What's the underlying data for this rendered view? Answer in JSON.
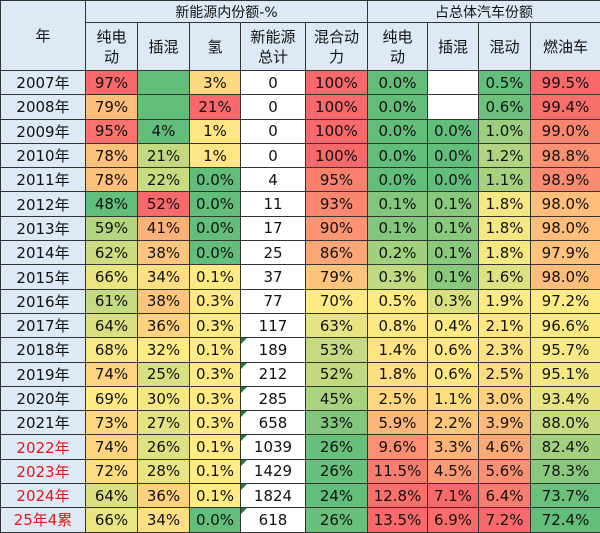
{
  "header": {
    "year": "年",
    "group_nev": "新能源内份额-%",
    "group_total": "占总体汽车份额",
    "cols": [
      "纯电\n动",
      "插混",
      "氢",
      "新能源\n总计",
      "混合动\n力",
      "纯电\n动",
      "插混",
      "混动",
      "燃油车"
    ]
  },
  "color_scale": {
    "low": "#63be7b",
    "mid": "#ffeb84",
    "high": "#f8696b",
    "header_bg": "#ddeaf6",
    "highlight_year_text": "#e8141b"
  },
  "empty_cell_fills": {
    "nev_phev": "#63be7b",
    "total_phev": "#ffffff"
  },
  "rows": [
    {
      "year": "2007年",
      "hl": false,
      "v": [
        "97%",
        "",
        "3%",
        "0",
        "100%",
        "0.0%",
        "",
        "0.5%",
        "99.5%"
      ]
    },
    {
      "year": "2008年",
      "hl": false,
      "v": [
        "79%",
        "",
        "21%",
        "0",
        "100%",
        "0.0%",
        "",
        "0.6%",
        "99.4%"
      ]
    },
    {
      "year": "2009年",
      "hl": false,
      "v": [
        "95%",
        "4%",
        "1%",
        "0",
        "100%",
        "0.0%",
        "0.0%",
        "1.0%",
        "99.0%"
      ]
    },
    {
      "year": "2010年",
      "hl": false,
      "v": [
        "78%",
        "21%",
        "1%",
        "0",
        "100%",
        "0.0%",
        "0.0%",
        "1.2%",
        "98.8%"
      ]
    },
    {
      "year": "2011年",
      "hl": false,
      "v": [
        "78%",
        "22%",
        "0.0%",
        "4",
        "95%",
        "0.0%",
        "0.0%",
        "1.1%",
        "98.9%"
      ]
    },
    {
      "year": "2012年",
      "hl": false,
      "v": [
        "48%",
        "52%",
        "0.0%",
        "11",
        "93%",
        "0.1%",
        "0.1%",
        "1.8%",
        "98.0%"
      ]
    },
    {
      "year": "2013年",
      "hl": false,
      "v": [
        "59%",
        "41%",
        "0.0%",
        "17",
        "90%",
        "0.1%",
        "0.1%",
        "1.8%",
        "98.0%"
      ]
    },
    {
      "year": "2014年",
      "hl": false,
      "v": [
        "62%",
        "38%",
        "0.0%",
        "25",
        "86%",
        "0.2%",
        "0.1%",
        "1.8%",
        "97.9%"
      ]
    },
    {
      "year": "2015年",
      "hl": false,
      "v": [
        "66%",
        "34%",
        "0.1%",
        "37",
        "79%",
        "0.3%",
        "0.1%",
        "1.6%",
        "98.0%"
      ]
    },
    {
      "year": "2016年",
      "hl": false,
      "v": [
        "61%",
        "38%",
        "0.3%",
        "77",
        "70%",
        "0.5%",
        "0.3%",
        "1.9%",
        "97.2%"
      ]
    },
    {
      "year": "2017年",
      "hl": false,
      "v": [
        "64%",
        "36%",
        "0.3%",
        "117",
        "63%",
        "0.8%",
        "0.4%",
        "2.1%",
        "96.6%"
      ]
    },
    {
      "year": "2018年",
      "hl": false,
      "v": [
        "68%",
        "32%",
        "0.1%",
        "189",
        "53%",
        "1.4%",
        "0.6%",
        "2.3%",
        "95.7%"
      ]
    },
    {
      "year": "2019年",
      "hl": false,
      "v": [
        "74%",
        "25%",
        "0.3%",
        "212",
        "52%",
        "1.8%",
        "0.6%",
        "2.5%",
        "95.1%"
      ]
    },
    {
      "year": "2020年",
      "hl": false,
      "v": [
        "69%",
        "30%",
        "0.3%",
        "285",
        "45%",
        "2.5%",
        "1.1%",
        "3.0%",
        "93.4%"
      ]
    },
    {
      "year": "2021年",
      "hl": false,
      "v": [
        "73%",
        "27%",
        "0.3%",
        "658",
        "33%",
        "5.9%",
        "2.2%",
        "3.9%",
        "88.0%"
      ]
    },
    {
      "year": "2022年",
      "hl": true,
      "v": [
        "74%",
        "26%",
        "0.1%",
        "1039",
        "26%",
        "9.6%",
        "3.3%",
        "4.6%",
        "82.4%"
      ]
    },
    {
      "year": "2023年",
      "hl": true,
      "v": [
        "72%",
        "28%",
        "0.1%",
        "1429",
        "26%",
        "11.5%",
        "4.5%",
        "5.6%",
        "78.3%"
      ]
    },
    {
      "year": "2024年",
      "hl": true,
      "v": [
        "64%",
        "36%",
        "0.1%",
        "1824",
        "24%",
        "12.8%",
        "7.1%",
        "6.4%",
        "73.7%"
      ]
    },
    {
      "year": "25年4累",
      "hl": true,
      "v": [
        "66%",
        "34%",
        "0.0%",
        "618",
        "26%",
        "13.5%",
        "6.9%",
        "7.2%",
        "72.4%"
      ]
    }
  ]
}
